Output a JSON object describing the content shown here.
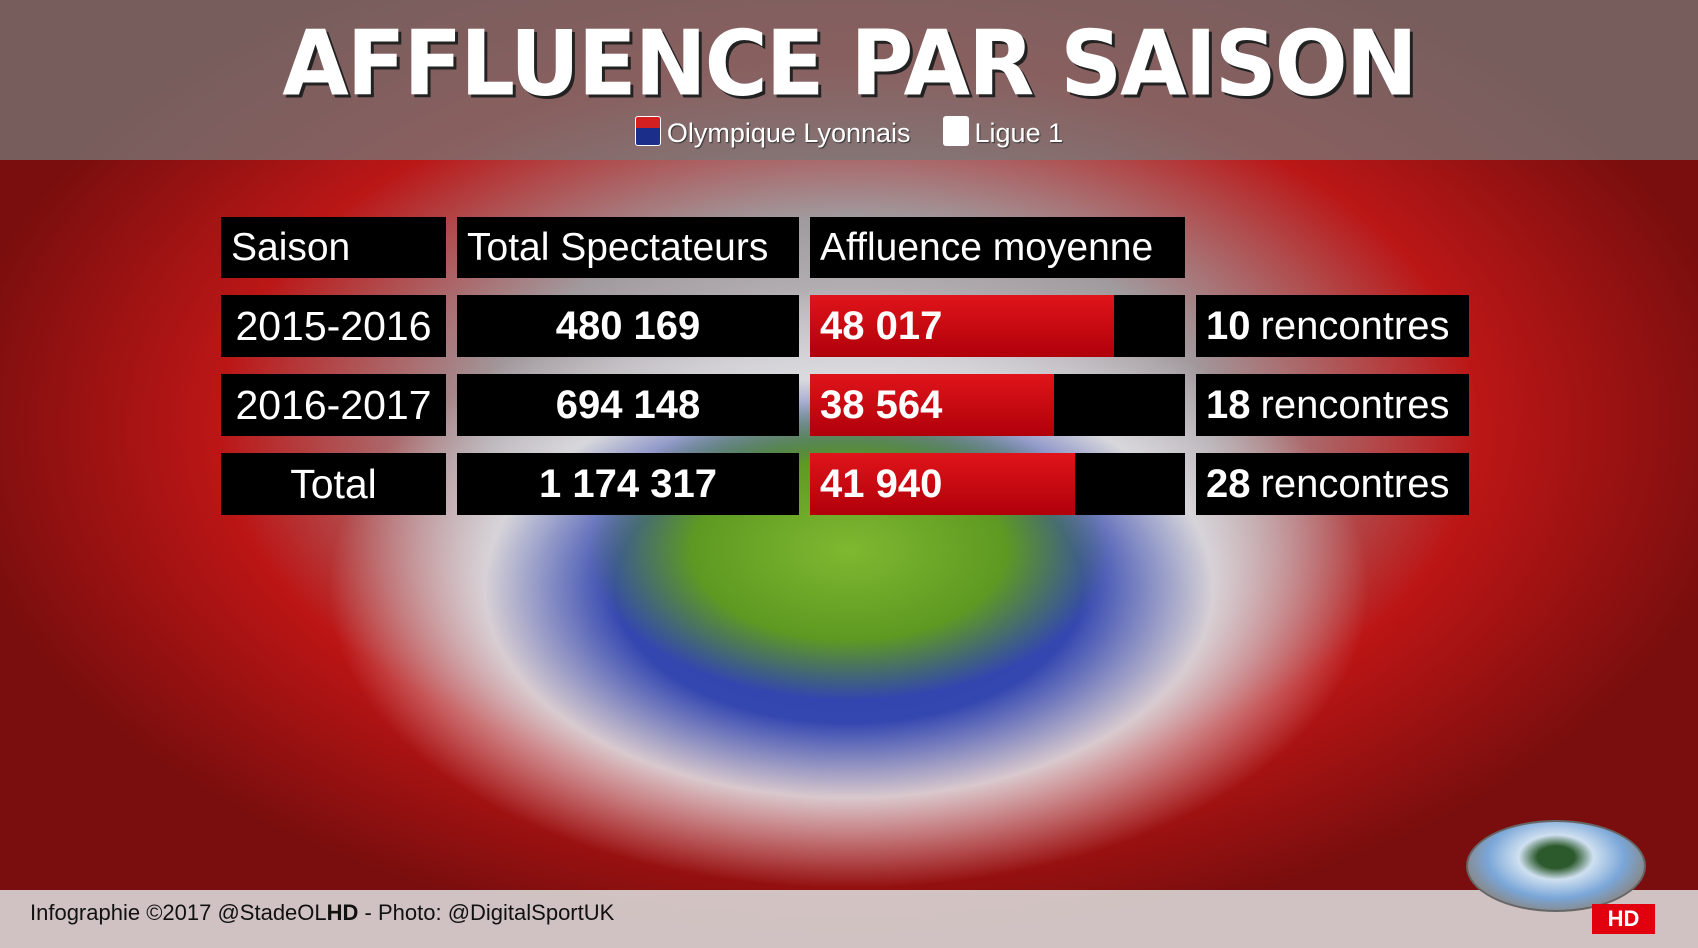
{
  "title": "AFFLUENCE PAR SAISON",
  "subtitle": {
    "club": "Olympique Lyonnais",
    "league": "Ligue 1"
  },
  "table": {
    "headers": [
      "Saison",
      "Total Spectateurs",
      "Affluence moyenne"
    ],
    "bar_max": 59300,
    "bar_color": "#e0141a",
    "rows": [
      {
        "season": "2015-2016",
        "total": "480 169",
        "average": "48 017",
        "average_value": 48017,
        "matches_count": "10",
        "matches_label": "rencontres"
      },
      {
        "season": "2016-2017",
        "total": "694 148",
        "average": "38 564",
        "average_value": 38564,
        "matches_count": "18",
        "matches_label": "rencontres"
      },
      {
        "season": "Total",
        "total": "1 174 317",
        "average": "41 940",
        "average_value": 41940,
        "matches_count": "28",
        "matches_label": "rencontres"
      }
    ]
  },
  "footer": {
    "prefix": "Infographie ©2017 @StadeOL",
    "bold": "HD",
    "suffix": " - Photo: @DigitalSportUK"
  },
  "badge": "HD"
}
